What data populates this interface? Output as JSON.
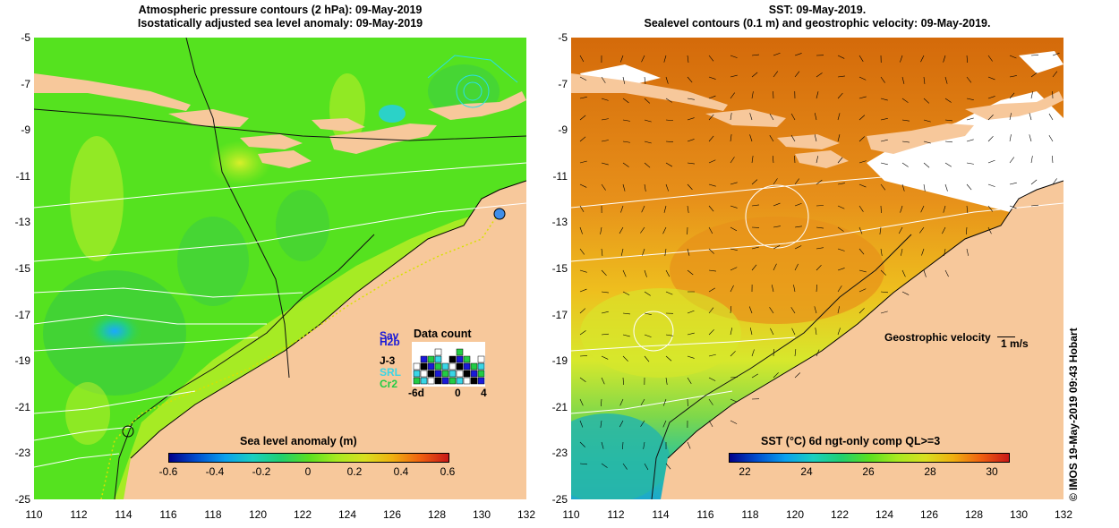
{
  "left_panel": {
    "title_line1": "Atmospheric pressure contours (2 hPa): 09-May-2019",
    "title_line2": "Isostatically adjusted sea level anomaly: 09-May-2019",
    "colorbar_label": "Sea level anomaly (m)",
    "colorbar_ticks": [
      "-0.6",
      "-0.4",
      "-0.2",
      "0",
      "0.2",
      "0.4",
      "0.6"
    ],
    "data_count": {
      "title": "Data count",
      "satellites": [
        {
          "name": "Sav",
          "color": "#1a1ad8"
        },
        {
          "name": "H2b",
          "color": "#1a1ad8"
        },
        {
          "name": "J-3",
          "color": "#000000"
        },
        {
          "name": "SRL",
          "color": "#39d6e6"
        },
        {
          "name": "Cr2",
          "color": "#22cc44"
        }
      ],
      "axis_ticks": [
        "-6d",
        "0",
        "4"
      ]
    }
  },
  "right_panel": {
    "title_line1": "SST: 09-May-2019.",
    "title_line2": "Sealevel contours (0.1 m) and geostrophic velocity: 09-May-2019.",
    "colorbar_label": "SST (°C) 6d ngt-only comp QL>=3",
    "colorbar_ticks": [
      "22",
      "24",
      "26",
      "28",
      "30"
    ],
    "velocity_legend": "Geostrophic velocity",
    "velocity_scale": "1 m/s"
  },
  "y_ticks": [
    "-5",
    "-7",
    "-9",
    "-11",
    "-13",
    "-15",
    "-17",
    "-19",
    "-21",
    "-23",
    "-25"
  ],
  "x_ticks": [
    "110",
    "112",
    "114",
    "116",
    "118",
    "120",
    "122",
    "124",
    "126",
    "128",
    "130",
    "132"
  ],
  "credit": "© IMOS 19-May-2019 09:43 Hobart",
  "colors": {
    "land": "#f7c89b",
    "ocean_anomaly": "#52e61f",
    "sst_warm": "#de7a10",
    "sst_cool": "#d8e82a"
  }
}
